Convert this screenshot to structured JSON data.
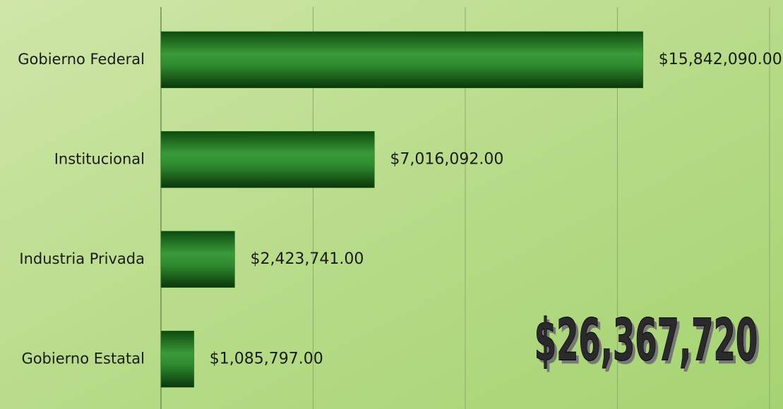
{
  "chart_data": {
    "type": "bar",
    "orientation": "horizontal",
    "categories": [
      "Gobierno Federal",
      "Institucional",
      "Industria Privada",
      "Gobierno Estatal"
    ],
    "values": [
      15842090,
      7016092,
      2423741,
      1085797
    ],
    "value_labels": [
      "$15,842,090.00",
      "$7,016,092.00",
      "$2,423,741.00",
      "$1,085,797.00"
    ],
    "color": "#1f7a1f",
    "xlim": [
      0,
      20000000
    ],
    "xticks": [
      0,
      5000000,
      10000000,
      15000000,
      20000000
    ],
    "grid": true,
    "annotation": "$26,367,720"
  }
}
